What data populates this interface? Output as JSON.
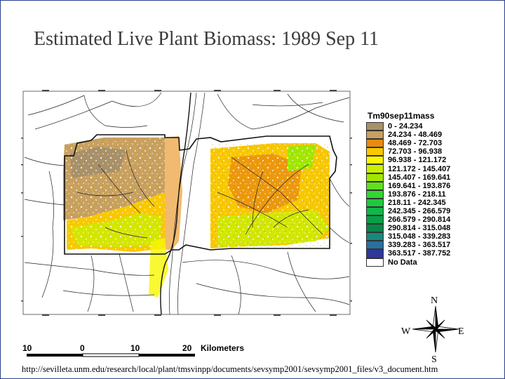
{
  "title": "Estimated Live Plant Biomass: 1989 Sep 11",
  "legend": {
    "title": "Tm90sep11mass",
    "classes": [
      {
        "label": "0 - 24.234",
        "color": "#a89068"
      },
      {
        "label": "24.234 - 48.469",
        "color": "#c8a060"
      },
      {
        "label": "48.469 - 72.703",
        "color": "#e88c10"
      },
      {
        "label": "72.703 - 96.938",
        "color": "#f8c800"
      },
      {
        "label": "96.938 - 121.172",
        "color": "#f8f800"
      },
      {
        "label": "121.172 - 145.407",
        "color": "#c8f000"
      },
      {
        "label": "145.407 - 169.641",
        "color": "#a0e800"
      },
      {
        "label": "169.641 - 193.876",
        "color": "#60e020"
      },
      {
        "label": "193.876 - 218.11",
        "color": "#30d830"
      },
      {
        "label": "218.11 - 242.345",
        "color": "#20c840"
      },
      {
        "label": "242.345 - 266.579",
        "color": "#10b848"
      },
      {
        "label": "266.579 - 290.814",
        "color": "#08a048"
      },
      {
        "label": "290.814 - 315.048",
        "color": "#088848"
      },
      {
        "label": "315.048 - 339.283",
        "color": "#18887c"
      },
      {
        "label": "339.283 - 363.517",
        "color": "#2870a0"
      },
      {
        "label": "363.517 - 387.752",
        "color": "#303898"
      },
      {
        "label": "No Data",
        "color": "#ffffff"
      }
    ]
  },
  "scale_bar": {
    "labels": [
      "10",
      "0",
      "10",
      "20"
    ],
    "unit": "Kilometers"
  },
  "compass": {
    "n": "N",
    "s": "S",
    "e": "E",
    "w": "W"
  },
  "source_url": "http://sevilleta.unm.edu/research/local/plant/tmsvinpp/documents/sevsymp2001/sevsymp2001_files/v3_document.htm"
}
